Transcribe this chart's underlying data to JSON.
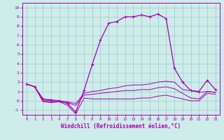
{
  "xlabel": "Windchill (Refroidissement éolien,°C)",
  "xlim": [
    -0.5,
    23.5
  ],
  "ylim": [
    -1.5,
    10.5
  ],
  "xticks": [
    0,
    1,
    2,
    3,
    4,
    5,
    6,
    7,
    8,
    9,
    10,
    11,
    12,
    13,
    14,
    15,
    16,
    17,
    18,
    19,
    20,
    21,
    22,
    23
  ],
  "yticks": [
    -1,
    0,
    1,
    2,
    3,
    4,
    5,
    6,
    7,
    8,
    9,
    10
  ],
  "bg_color": "#ceecea",
  "line_color": "#aa00aa",
  "grid_color": "#99cccc",
  "y_main": [
    1.8,
    1.5,
    0.2,
    0.1,
    0.0,
    -0.3,
    -1.2,
    1.1,
    3.9,
    6.5,
    8.3,
    8.5,
    9.0,
    9.0,
    9.2,
    9.0,
    9.3,
    8.8,
    3.5,
    2.0,
    1.1,
    1.0,
    2.2,
    1.2
  ],
  "y_line2": [
    1.8,
    1.5,
    0.1,
    0.0,
    0.0,
    -0.1,
    -0.3,
    0.8,
    1.0,
    1.1,
    1.3,
    1.4,
    1.6,
    1.7,
    1.7,
    1.8,
    2.0,
    2.1,
    2.0,
    1.2,
    1.1,
    0.9,
    1.0,
    0.9
  ],
  "y_line3": [
    1.8,
    1.5,
    0.0,
    -0.1,
    -0.1,
    -0.2,
    -0.5,
    0.6,
    0.7,
    0.8,
    0.9,
    1.0,
    1.1,
    1.1,
    1.2,
    1.2,
    1.4,
    1.5,
    1.3,
    0.8,
    0.3,
    0.2,
    1.0,
    0.9
  ],
  "y_line4": [
    1.8,
    1.5,
    -0.1,
    -0.2,
    -0.1,
    -0.5,
    -1.4,
    0.3,
    0.2,
    0.2,
    0.2,
    0.2,
    0.2,
    0.2,
    0.3,
    0.3,
    0.5,
    0.6,
    0.4,
    0.2,
    0.0,
    0.0,
    0.8,
    0.7
  ]
}
